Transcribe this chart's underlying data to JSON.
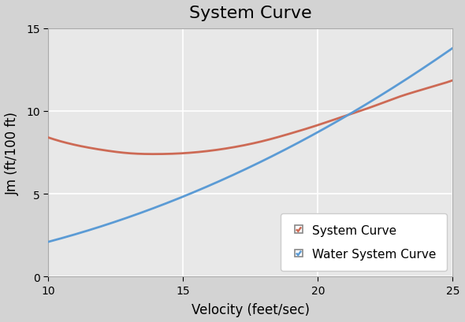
{
  "title": "System Curve",
  "xlabel": "Velocity (feet/sec)",
  "ylabel": "Jm (ft/100 ft)",
  "xlim": [
    10,
    25
  ],
  "ylim": [
    0,
    15
  ],
  "xticks": [
    10,
    15,
    20,
    25
  ],
  "yticks": [
    0,
    5,
    10,
    15
  ],
  "plot_bg_color": "#e8e8e8",
  "figure_bg_color": "#d3d3d3",
  "grid_color": "#ffffff",
  "system_curve_color": "#cd6a55",
  "water_curve_color": "#5b9bd5",
  "legend_labels": [
    "System Curve",
    "Water System Curve"
  ],
  "title_fontsize": 16,
  "axis_label_fontsize": 12,
  "tick_fontsize": 10,
  "outer_border_color": "#c8a000",
  "toolbar_bg": "#d4d0c8",
  "tab_active_bg": "#ffffff",
  "system_curve_points": {
    "v": [
      10,
      11,
      12,
      13,
      14,
      15,
      16,
      17,
      18,
      19,
      20,
      21,
      22,
      23,
      24,
      25
    ],
    "jm": [
      8.4,
      7.95,
      7.65,
      7.45,
      7.4,
      7.45,
      7.6,
      7.85,
      8.2,
      8.65,
      9.15,
      9.7,
      10.25,
      10.85,
      11.35,
      11.85
    ]
  },
  "water_curve_points": {
    "v": [
      10,
      25
    ],
    "jm": [
      2.1,
      13.8
    ]
  }
}
